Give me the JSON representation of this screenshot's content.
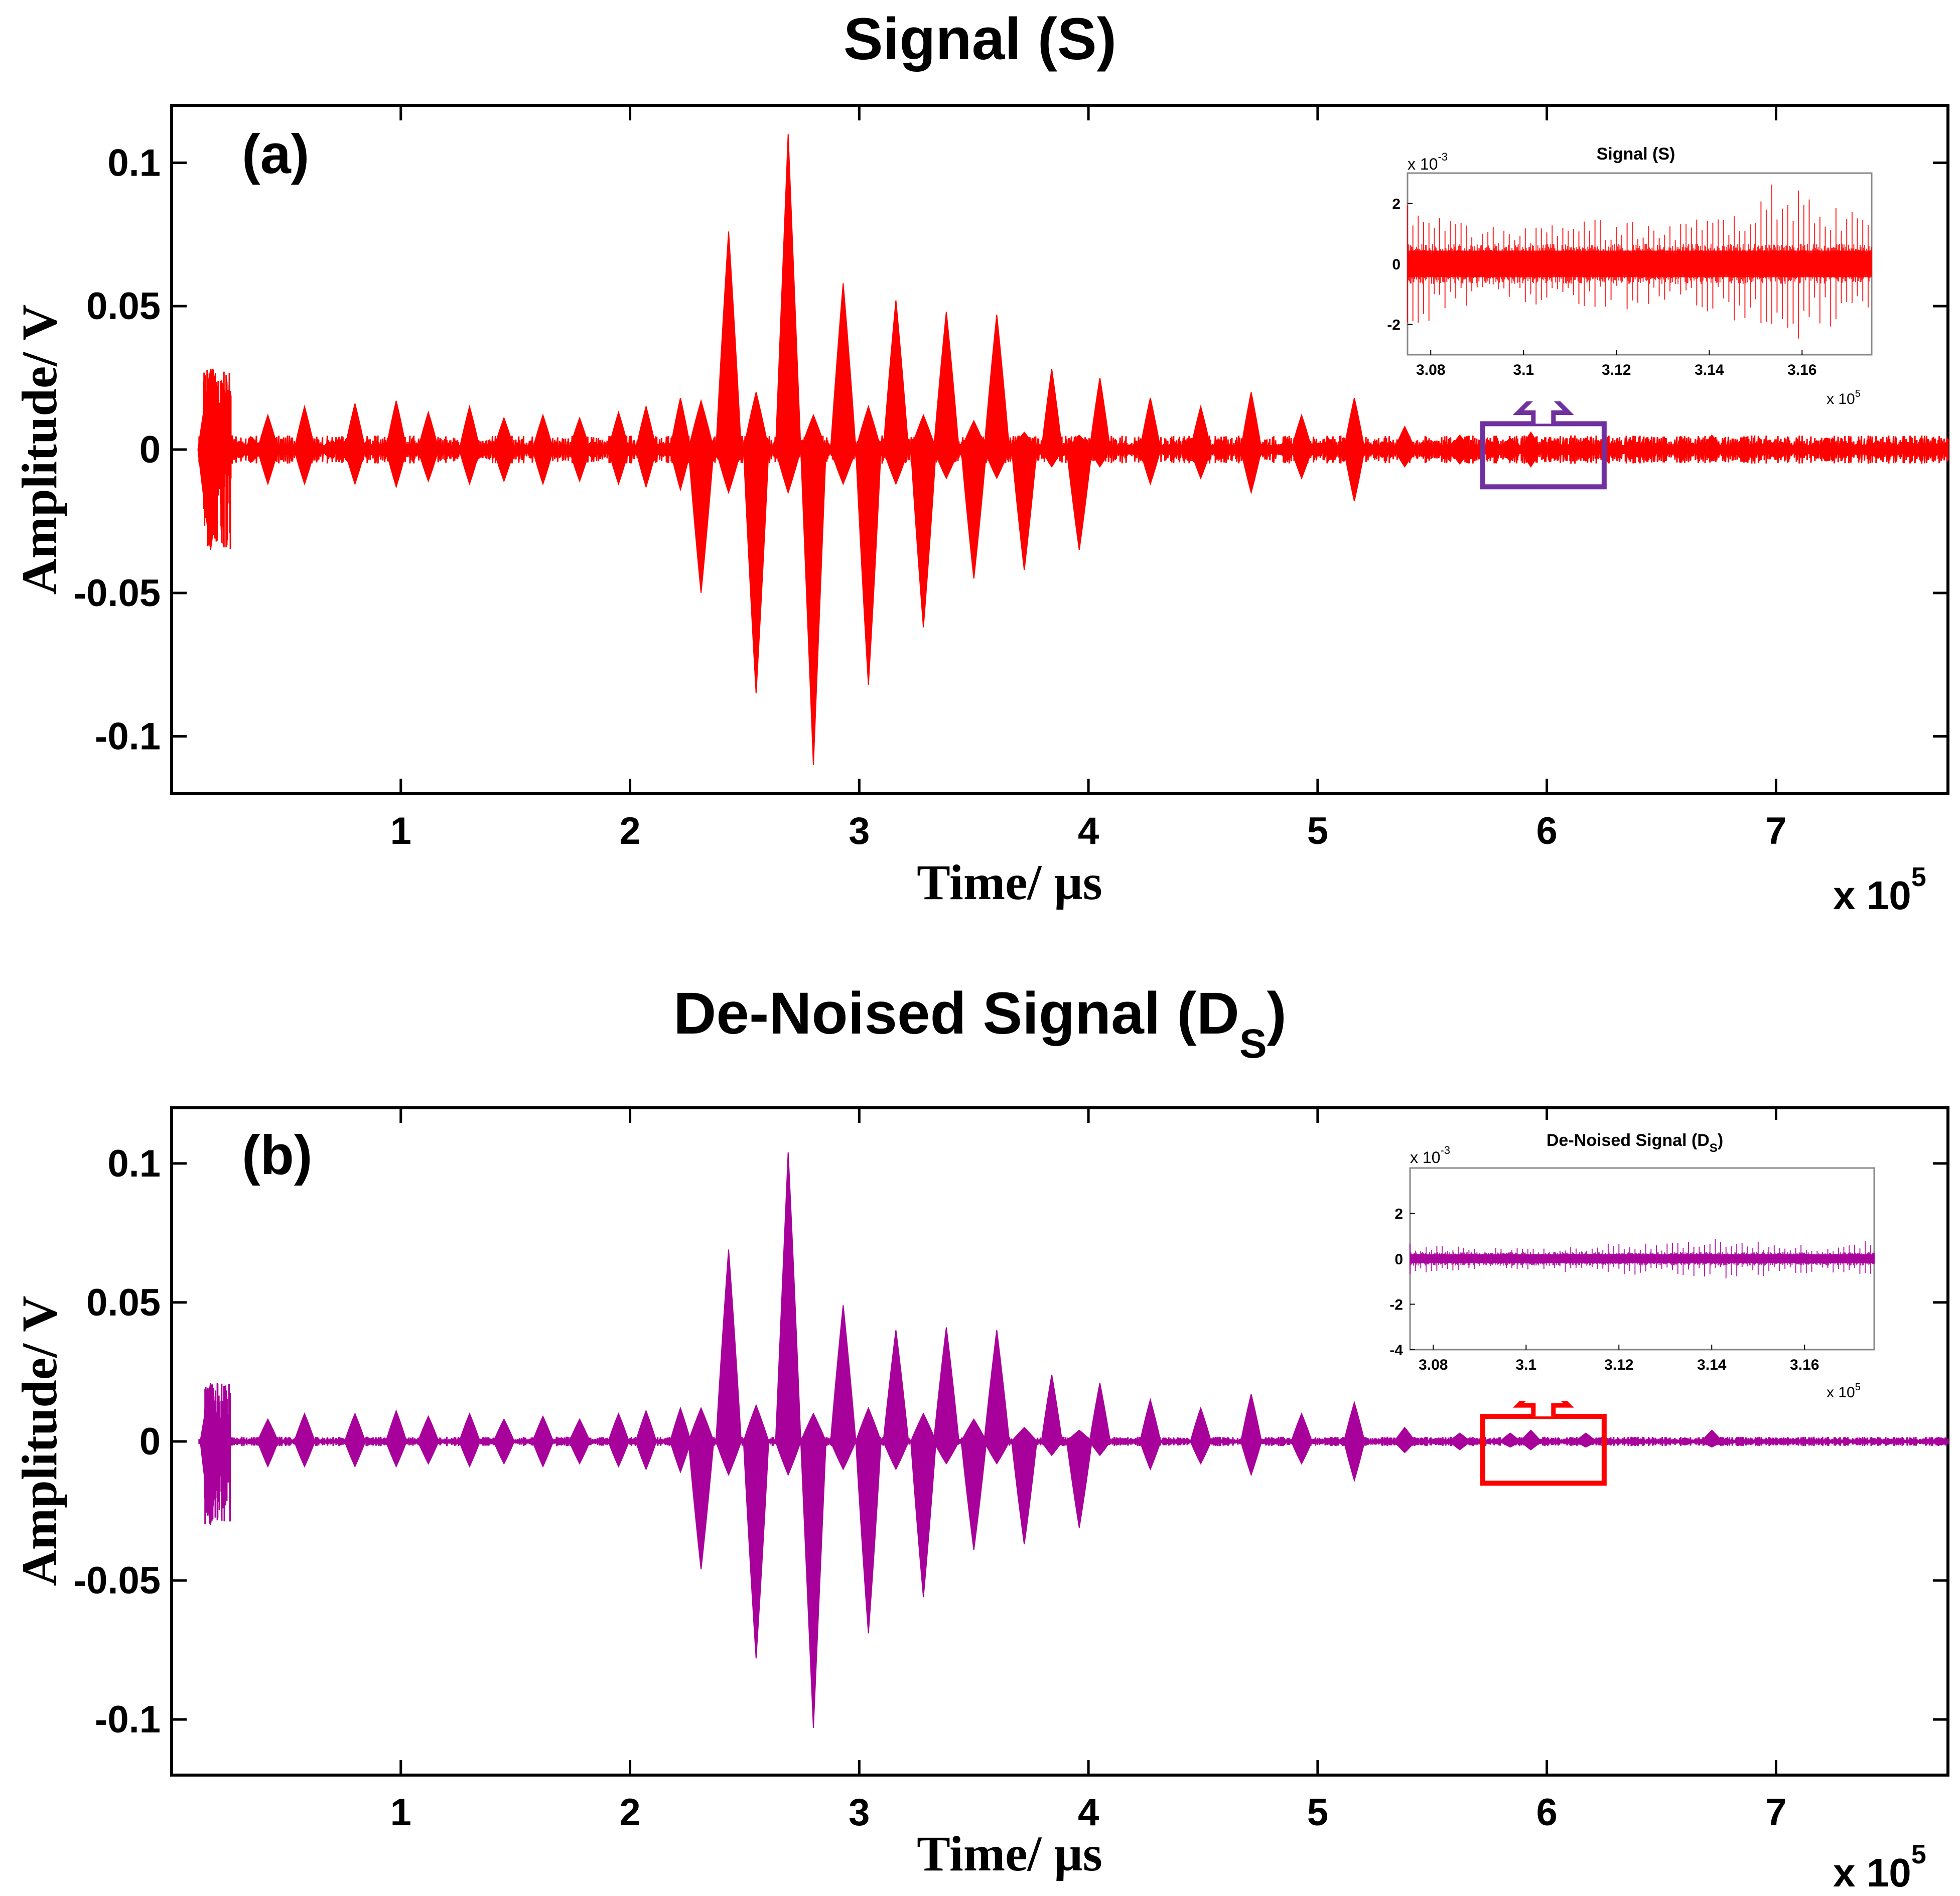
{
  "figure": {
    "panels": [
      {
        "id": "a",
        "panel_label": "(a)",
        "title": "Signal (S)",
        "title_sub": "",
        "trace_color": "#ff0000",
        "highlight_color": "#7030a0",
        "inset": {
          "title": "Signal (S)",
          "title_sub": "",
          "exponent_y_base": "x 10",
          "exponent_y_power": "-3",
          "exponent_x_base": "x 10",
          "exponent_x_power": "5",
          "trace_color": "#ff0000"
        }
      },
      {
        "id": "b",
        "panel_label": "(b)",
        "title": "De-Noised Signal (D",
        "title_sub": "S",
        "title_close": ")",
        "trace_color": "#a8009a",
        "highlight_color": "#ff0000",
        "inset": {
          "title": "De-Noised Signal (D",
          "title_sub": "S",
          "title_close": ")",
          "exponent_y_base": "x 10",
          "exponent_y_power": "-3",
          "exponent_x_base": "x 10",
          "exponent_x_power": "5",
          "trace_color": "#a8009a"
        }
      }
    ],
    "x_exponent_base": "x 10",
    "x_exponent_power": "5"
  },
  "chart_data": [
    {
      "type": "line",
      "title": "Signal (S)",
      "panel": "(a)",
      "xlabel": "Time/ µs",
      "ylabel": "Amplitude/ V",
      "x_scale_note": "x 10^5",
      "xlim": [
        0,
        7.75
      ],
      "ylim": [
        -0.12,
        0.12
      ],
      "xticks": [
        1,
        2,
        3,
        4,
        5,
        6,
        7
      ],
      "xtick_labels": [
        "1",
        "2",
        "3",
        "4",
        "5",
        "6",
        "7"
      ],
      "yticks": [
        -0.1,
        -0.05,
        0,
        0.05,
        0.1
      ],
      "ytick_labels": [
        "-0.1",
        "-0.05",
        "0",
        "0.05",
        "0.1"
      ],
      "color": "#ff0000",
      "noise_level": 0.0035,
      "bursts_x": [
        0.17,
        0.42,
        0.58,
        0.8,
        0.98,
        1.12,
        1.3,
        1.45,
        1.62,
        1.78,
        1.95,
        2.07,
        2.22,
        2.31,
        2.43,
        2.55,
        2.69,
        2.8,
        2.93,
        3.04,
        3.16,
        3.28,
        3.38,
        3.5,
        3.6,
        3.72,
        3.84,
        3.96,
        4.05,
        4.27,
        4.49,
        4.71,
        4.93,
        5.16,
        5.38,
        5.62,
        5.84,
        5.93,
        6.17,
        6.72
      ],
      "bursts_pos": [
        0.028,
        0.012,
        0.015,
        0.016,
        0.017,
        0.013,
        0.015,
        0.011,
        0.012,
        0.011,
        0.013,
        0.015,
        0.018,
        0.017,
        0.076,
        0.02,
        0.11,
        0.012,
        0.058,
        0.015,
        0.052,
        0.012,
        0.048,
        0.01,
        0.047,
        0.006,
        0.028,
        0.005,
        0.025,
        0.018,
        0.015,
        0.02,
        0.012,
        0.018,
        0.008,
        0.005,
        0.004,
        0.006,
        0.004,
        0.005
      ],
      "bursts_neg": [
        -0.035,
        -0.012,
        -0.012,
        -0.012,
        -0.013,
        -0.011,
        -0.012,
        -0.011,
        -0.012,
        -0.011,
        -0.012,
        -0.013,
        -0.014,
        -0.05,
        -0.015,
        -0.085,
        -0.015,
        -0.11,
        -0.012,
        -0.082,
        -0.012,
        -0.062,
        -0.01,
        -0.045,
        -0.01,
        -0.042,
        -0.006,
        -0.035,
        -0.006,
        -0.012,
        -0.01,
        -0.015,
        -0.01,
        -0.018,
        -0.006,
        -0.005,
        -0.004,
        -0.006,
        -0.004,
        -0.004
      ],
      "highlight_box_x": [
        5.72,
        6.25
      ],
      "highlight_box_y": [
        -0.013,
        0.009
      ],
      "inset": {
        "title": "Signal (S)",
        "xlim": [
          3.075,
          3.175
        ],
        "ylim": [
          -3,
          3
        ],
        "xticks": [
          3.08,
          3.1,
          3.12,
          3.14,
          3.16
        ],
        "xtick_labels": [
          "3.08",
          "3.1",
          "3.12",
          "3.14",
          "3.16"
        ],
        "yticks": [
          -2,
          0,
          2
        ],
        "ytick_labels": [
          "-2",
          "0",
          "2"
        ],
        "band": 0.55,
        "spike_envelope_x": [
          3.075,
          3.08,
          3.09,
          3.1,
          3.11,
          3.12,
          3.13,
          3.14,
          3.15,
          3.155,
          3.165,
          3.175
        ],
        "spike_envelope_y": [
          2.4,
          2.0,
          1.2,
          1.3,
          1.5,
          1.6,
          1.2,
          1.6,
          2.3,
          2.8,
          2.2,
          1.4
        ]
      }
    },
    {
      "type": "line",
      "title": "De-Noised Signal (DS)",
      "panel": "(b)",
      "xlabel": "Time/ µs",
      "ylabel": "Amplitude/ V",
      "x_scale_note": "x 10^5",
      "xlim": [
        0,
        7.75
      ],
      "ylim": [
        -0.12,
        0.12
      ],
      "xticks": [
        1,
        2,
        3,
        4,
        5,
        6,
        7
      ],
      "xtick_labels": [
        "1",
        "2",
        "3",
        "4",
        "5",
        "6",
        "7"
      ],
      "yticks": [
        -0.1,
        -0.05,
        0,
        0.05,
        0.1
      ],
      "ytick_labels": [
        "-0.1",
        "-0.05",
        "0",
        "0.05",
        "0.1"
      ],
      "color": "#a8009a",
      "noise_level": 0.0012,
      "bursts_x": [
        0.17,
        0.42,
        0.58,
        0.8,
        0.98,
        1.12,
        1.3,
        1.45,
        1.62,
        1.78,
        1.95,
        2.07,
        2.22,
        2.31,
        2.43,
        2.55,
        2.69,
        2.8,
        2.93,
        3.04,
        3.16,
        3.28,
        3.38,
        3.5,
        3.6,
        3.72,
        3.84,
        3.96,
        4.05,
        4.27,
        4.49,
        4.71,
        4.93,
        5.16,
        5.38,
        5.62,
        5.84,
        5.93,
        6.17,
        6.72
      ],
      "bursts_pos": [
        0.021,
        0.008,
        0.01,
        0.01,
        0.011,
        0.009,
        0.01,
        0.008,
        0.009,
        0.008,
        0.01,
        0.011,
        0.012,
        0.012,
        0.069,
        0.013,
        0.104,
        0.01,
        0.049,
        0.012,
        0.04,
        0.01,
        0.041,
        0.008,
        0.04,
        0.005,
        0.024,
        0.004,
        0.021,
        0.015,
        0.012,
        0.017,
        0.01,
        0.014,
        0.005,
        0.003,
        0.003,
        0.004,
        0.003,
        0.004
      ],
      "bursts_neg": [
        -0.03,
        -0.009,
        -0.009,
        -0.009,
        -0.009,
        -0.008,
        -0.009,
        -0.008,
        -0.009,
        -0.008,
        -0.009,
        -0.01,
        -0.011,
        -0.046,
        -0.012,
        -0.078,
        -0.012,
        -0.103,
        -0.01,
        -0.069,
        -0.01,
        -0.056,
        -0.008,
        -0.039,
        -0.008,
        -0.037,
        -0.005,
        -0.031,
        -0.005,
        -0.01,
        -0.008,
        -0.012,
        -0.008,
        -0.014,
        -0.004,
        -0.003,
        -0.002,
        -0.003,
        -0.002,
        -0.002
      ],
      "highlight_box_x": [
        5.72,
        6.25
      ],
      "highlight_box_y": [
        -0.015,
        0.009
      ],
      "inset": {
        "title": "De-Noised Signal (DS)",
        "xlim": [
          3.075,
          3.175
        ],
        "ylim": [
          -4,
          4
        ],
        "xticks": [
          3.08,
          3.1,
          3.12,
          3.14,
          3.16
        ],
        "xtick_labels": [
          "3.08",
          "3.1",
          "3.12",
          "3.14",
          "3.16"
        ],
        "yticks": [
          -4,
          -2,
          0,
          2
        ],
        "ytick_labels": [
          "-4",
          "-2",
          "0",
          "2"
        ],
        "band": 0.25,
        "spike_envelope_x": [
          3.075,
          3.08,
          3.09,
          3.1,
          3.11,
          3.12,
          3.13,
          3.14,
          3.15,
          3.155,
          3.165,
          3.175
        ],
        "spike_envelope_y": [
          0.7,
          0.6,
          0.5,
          0.5,
          0.6,
          0.7,
          0.7,
          0.9,
          0.8,
          0.7,
          0.6,
          0.9
        ]
      }
    }
  ]
}
